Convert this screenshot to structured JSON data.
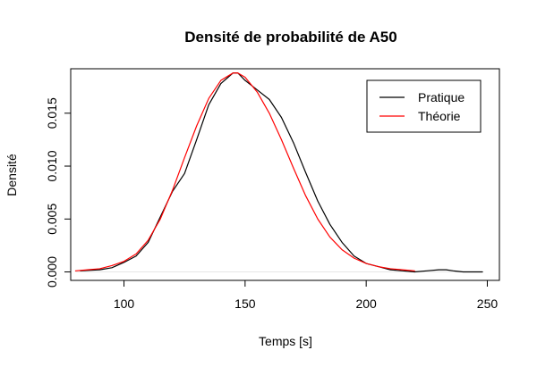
{
  "chart_data": {
    "type": "line",
    "title": "Densité de probabilité de A50",
    "xlabel": "Temps [s]",
    "ylabel": "Densité",
    "xlim": [
      78,
      255
    ],
    "ylim": [
      -0.0008,
      0.0192
    ],
    "x_ticks": [
      100,
      150,
      200,
      250
    ],
    "y_ticks": [
      0.0,
      0.005,
      0.01,
      0.015
    ],
    "y_tick_labels": [
      "0.000",
      "0.005",
      "0.010",
      "0.015"
    ],
    "baseline": 0,
    "legend_position": "top-right",
    "grid": false,
    "series": [
      {
        "name": "Pratique",
        "color": "#000000",
        "x": [
          82,
          90,
          95,
          100,
          105,
          110,
          115,
          120,
          125,
          130,
          135,
          140,
          145,
          147,
          150,
          155,
          160,
          165,
          170,
          175,
          180,
          185,
          190,
          195,
          200,
          205,
          210,
          215,
          220,
          225,
          230,
          233,
          236,
          240,
          245,
          248
        ],
        "y": [
          0.0001,
          0.0002,
          0.0004,
          0.0009,
          0.0015,
          0.0028,
          0.0052,
          0.0076,
          0.0093,
          0.0125,
          0.0158,
          0.0178,
          0.0188,
          0.0188,
          0.0181,
          0.0172,
          0.0163,
          0.0146,
          0.0122,
          0.0094,
          0.0067,
          0.0045,
          0.0028,
          0.0015,
          0.0008,
          0.0005,
          0.0002,
          0.0001,
          0.0,
          0.0001,
          0.0002,
          0.0002,
          0.0001,
          0.0,
          0.0,
          0.0
        ]
      },
      {
        "name": "Théorie",
        "color": "#ff0000",
        "x": [
          80,
          85,
          90,
          95,
          100,
          105,
          110,
          115,
          120,
          125,
          130,
          135,
          140,
          145,
          147,
          150,
          155,
          160,
          165,
          170,
          175,
          180,
          185,
          190,
          195,
          200,
          205,
          210,
          215,
          220
        ],
        "y": [
          0.0001,
          0.0002,
          0.0003,
          0.0006,
          0.001,
          0.0017,
          0.003,
          0.005,
          0.0077,
          0.0108,
          0.0138,
          0.0164,
          0.0181,
          0.0188,
          0.0188,
          0.0184,
          0.017,
          0.015,
          0.0125,
          0.0098,
          0.0072,
          0.005,
          0.0033,
          0.0021,
          0.0013,
          0.0008,
          0.0005,
          0.0003,
          0.0002,
          0.0001
        ]
      }
    ]
  }
}
